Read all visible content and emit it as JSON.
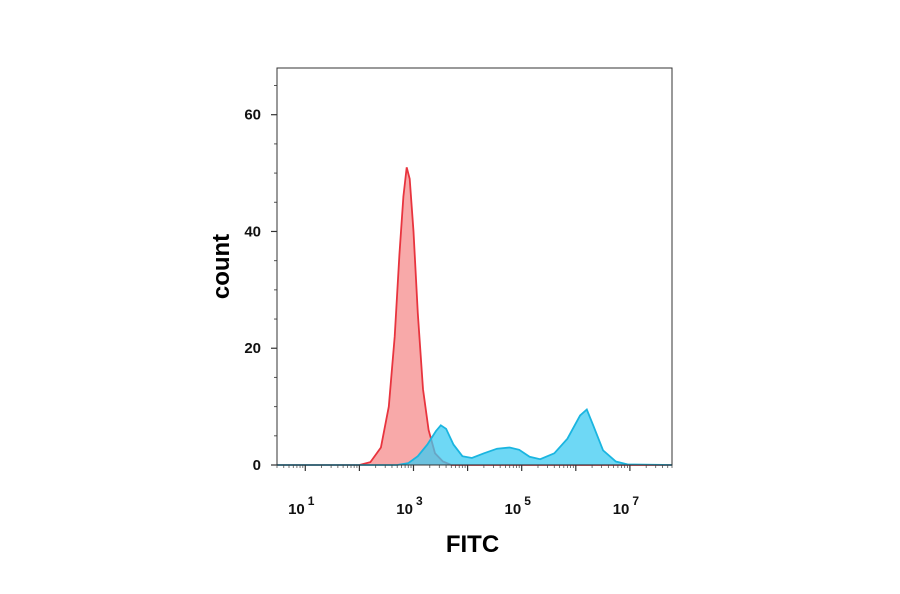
{
  "chart_data": {
    "type": "area",
    "title": "",
    "xlabel": "FITC",
    "ylabel": "count",
    "x_scale": "log",
    "xlim": [
      3,
      60000000
    ],
    "ylim": [
      0,
      68
    ],
    "grid": false,
    "legend": "none",
    "y_ticks": [
      {
        "value": 0,
        "label": "0"
      },
      {
        "value": 20,
        "label": "20"
      },
      {
        "value": 40,
        "label": "40"
      },
      {
        "value": 60,
        "label": "60"
      }
    ],
    "x_ticks": [
      {
        "value": 10,
        "base": "10",
        "exp": "1"
      },
      {
        "value": 1000,
        "base": "10",
        "exp": "3"
      },
      {
        "value": 100000,
        "base": "10",
        "exp": "5"
      },
      {
        "value": 10000000,
        "base": "10",
        "exp": "7"
      }
    ],
    "series": [
      {
        "color": "#e8343e",
        "fill": "#f58c8c",
        "points": [
          [
            3,
            0
          ],
          [
            100,
            0
          ],
          [
            160,
            0.5
          ],
          [
            250,
            3
          ],
          [
            350,
            10
          ],
          [
            450,
            22
          ],
          [
            550,
            36
          ],
          [
            650,
            46
          ],
          [
            750,
            51
          ],
          [
            850,
            49
          ],
          [
            1000,
            40
          ],
          [
            1200,
            26
          ],
          [
            1500,
            13
          ],
          [
            1900,
            6
          ],
          [
            2500,
            2
          ],
          [
            3500,
            0.6
          ],
          [
            5000,
            0
          ],
          [
            60000000,
            0
          ]
        ]
      },
      {
        "color": "#1ab5e0",
        "fill": "#3ecbf2",
        "points": [
          [
            3,
            0
          ],
          [
            500,
            0
          ],
          [
            800,
            0.3
          ],
          [
            1200,
            1.5
          ],
          [
            1800,
            3.5
          ],
          [
            2600,
            5.8
          ],
          [
            3200,
            6.8
          ],
          [
            4000,
            6.2
          ],
          [
            5500,
            3.5
          ],
          [
            8000,
            1.5
          ],
          [
            12000,
            1.2
          ],
          [
            20000,
            2
          ],
          [
            35000,
            2.8
          ],
          [
            60000,
            3
          ],
          [
            90000,
            2.6
          ],
          [
            140000,
            1.4
          ],
          [
            220000,
            1
          ],
          [
            400000,
            2
          ],
          [
            700000,
            4.5
          ],
          [
            1200000,
            8.5
          ],
          [
            1600000,
            9.5
          ],
          [
            2100000,
            6.8
          ],
          [
            3200000,
            2.5
          ],
          [
            5500000,
            0.6
          ],
          [
            9000000,
            0.1
          ],
          [
            60000000,
            0
          ]
        ]
      }
    ]
  }
}
